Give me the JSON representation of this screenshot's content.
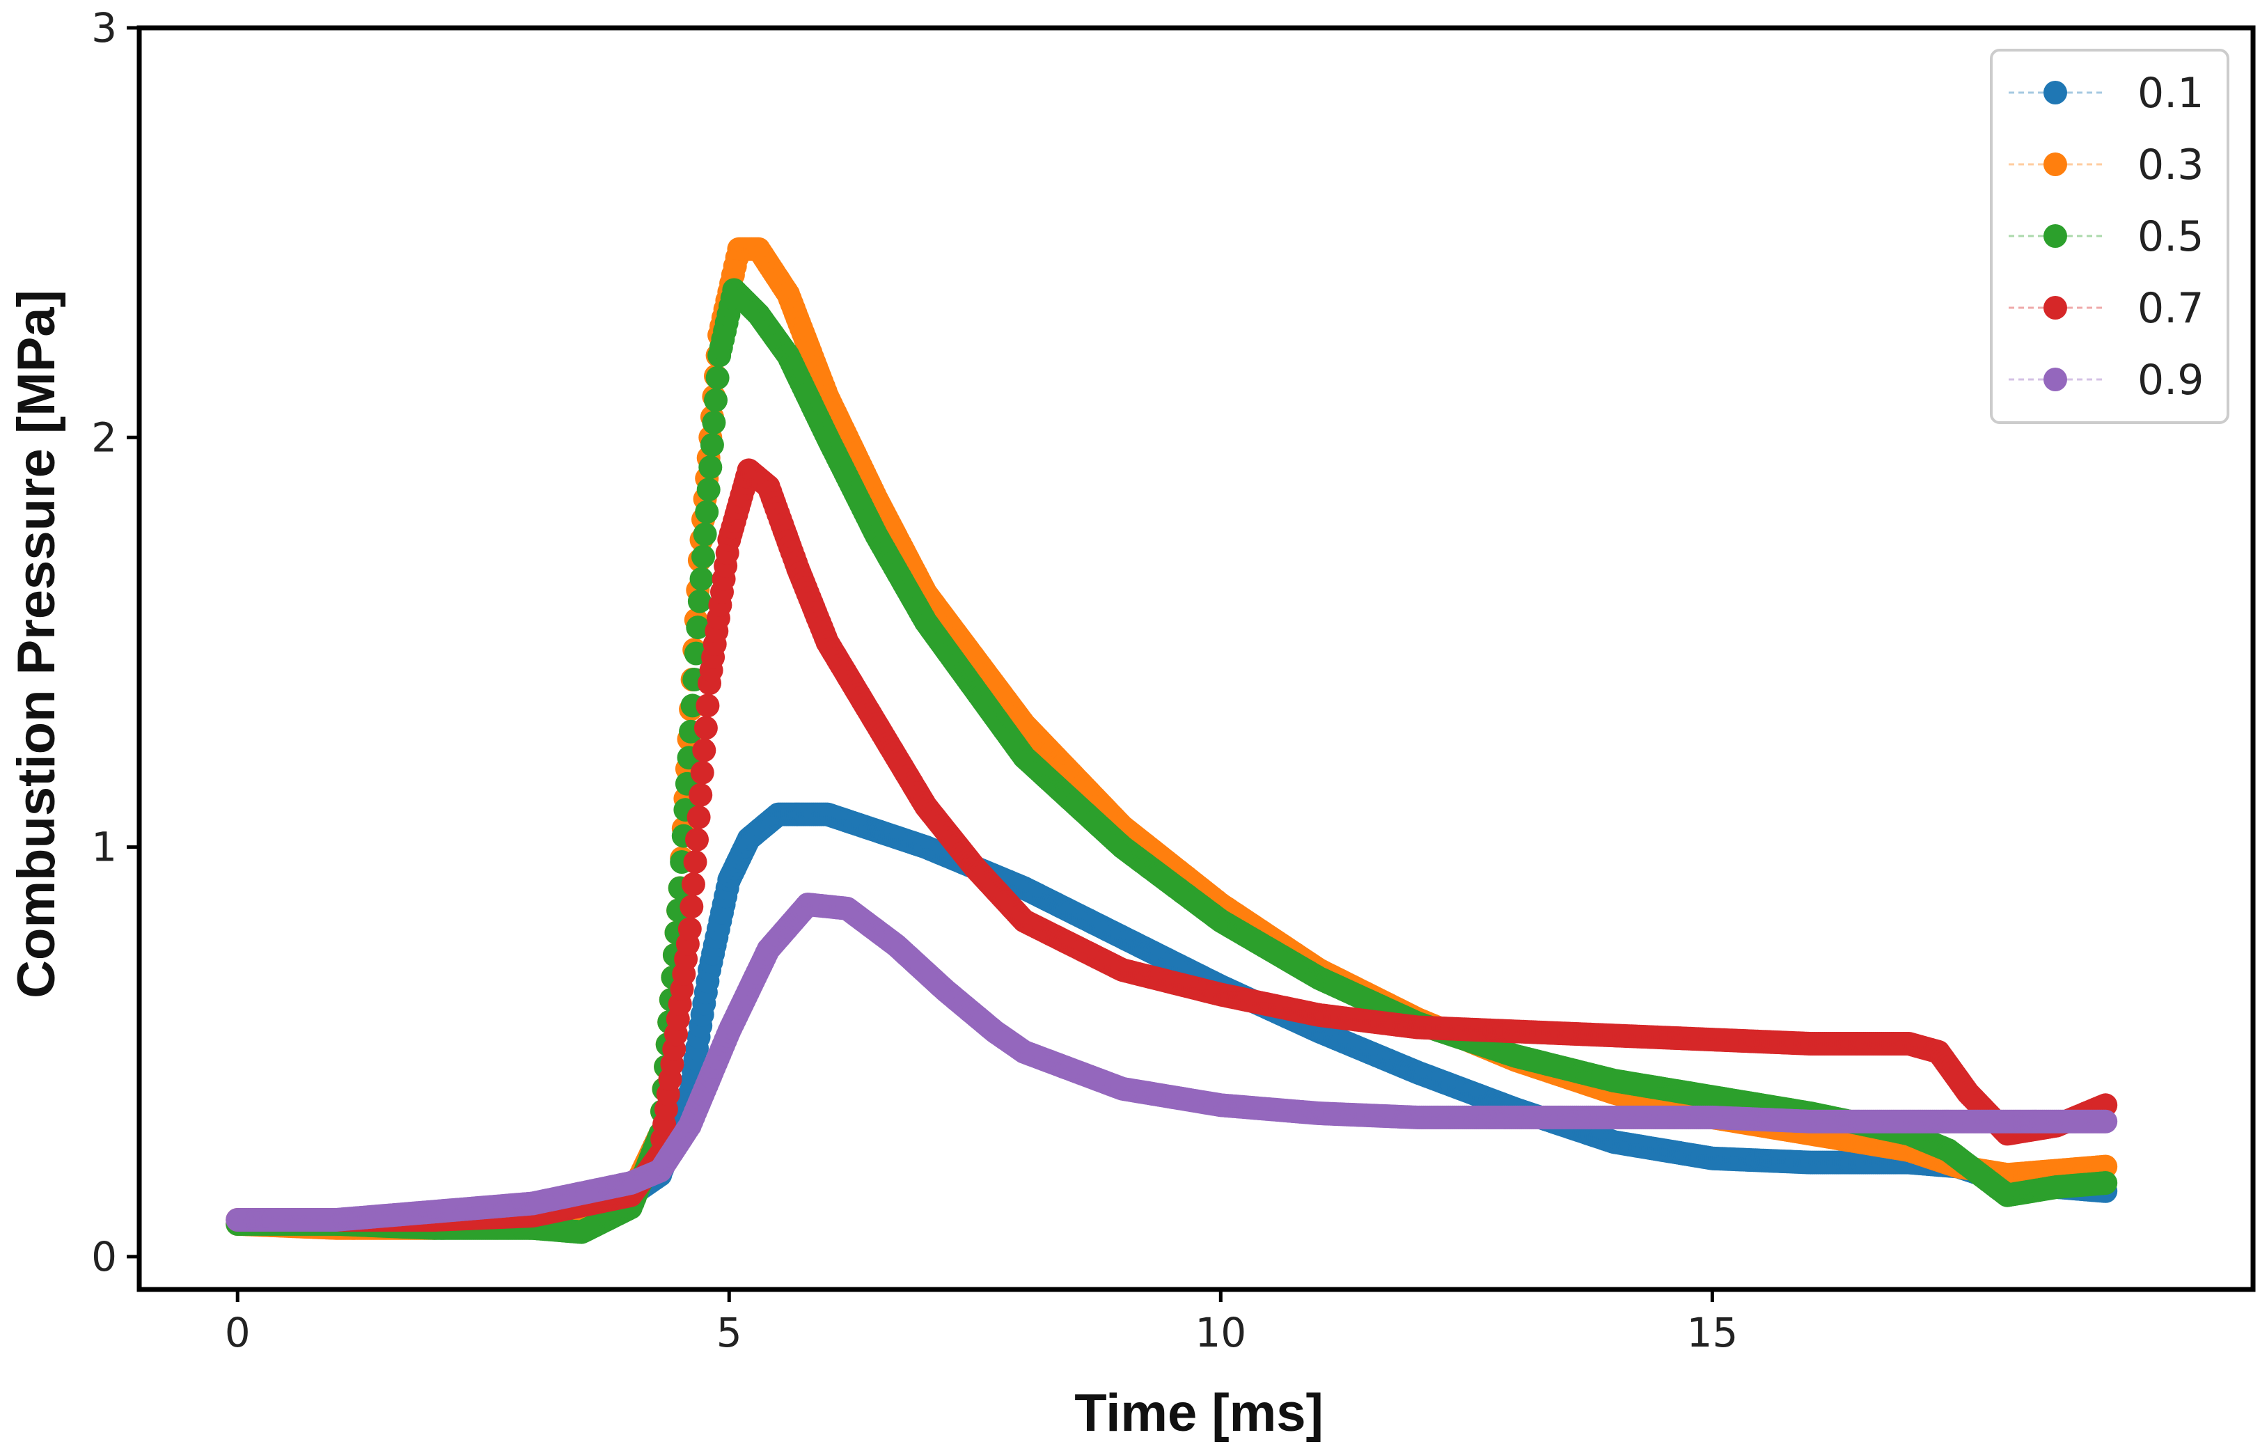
{
  "chart_data": {
    "type": "scatter",
    "title": "",
    "xlabel": "Time [ms]",
    "ylabel": "Combustion Pressure [MPa]",
    "xlim": [
      -1,
      20.5
    ],
    "ylim": [
      -0.08,
      3.0
    ],
    "xticks": [
      0,
      5,
      10,
      15
    ],
    "yticks": [
      0,
      1,
      2,
      3
    ],
    "legend_position": "top-right",
    "series": [
      {
        "name": "0.1",
        "color": "#1f77b4",
        "points": [
          [
            0,
            0.08
          ],
          [
            1,
            0.08
          ],
          [
            2,
            0.09
          ],
          [
            3,
            0.1
          ],
          [
            4,
            0.15
          ],
          [
            4.3,
            0.2
          ],
          [
            4.6,
            0.4
          ],
          [
            4.8,
            0.7
          ],
          [
            5.0,
            0.92
          ],
          [
            5.2,
            1.02
          ],
          [
            5.5,
            1.08
          ],
          [
            6,
            1.08
          ],
          [
            7,
            1.0
          ],
          [
            8,
            0.9
          ],
          [
            9,
            0.78
          ],
          [
            10,
            0.66
          ],
          [
            11,
            0.55
          ],
          [
            12,
            0.45
          ],
          [
            13,
            0.36
          ],
          [
            14,
            0.28
          ],
          [
            15,
            0.24
          ],
          [
            16,
            0.23
          ],
          [
            17,
            0.23
          ],
          [
            17.5,
            0.22
          ],
          [
            18,
            0.18
          ],
          [
            19,
            0.16
          ]
        ]
      },
      {
        "name": "0.3",
        "color": "#ff7f0e",
        "points": [
          [
            0,
            0.08
          ],
          [
            1,
            0.07
          ],
          [
            2,
            0.07
          ],
          [
            3,
            0.08
          ],
          [
            3.6,
            0.1
          ],
          [
            4,
            0.15
          ],
          [
            4.3,
            0.3
          ],
          [
            4.5,
            0.9
          ],
          [
            4.7,
            1.7
          ],
          [
            4.9,
            2.25
          ],
          [
            5.1,
            2.46
          ],
          [
            5.3,
            2.46
          ],
          [
            5.6,
            2.35
          ],
          [
            6,
            2.1
          ],
          [
            6.5,
            1.85
          ],
          [
            7,
            1.62
          ],
          [
            8,
            1.3
          ],
          [
            9,
            1.05
          ],
          [
            10,
            0.86
          ],
          [
            11,
            0.7
          ],
          [
            12,
            0.58
          ],
          [
            13,
            0.48
          ],
          [
            14,
            0.4
          ],
          [
            15,
            0.34
          ],
          [
            16,
            0.3
          ],
          [
            17,
            0.26
          ],
          [
            17.5,
            0.22
          ],
          [
            18,
            0.2
          ],
          [
            19,
            0.22
          ]
        ]
      },
      {
        "name": "0.5",
        "color": "#2ca02c",
        "points": [
          [
            0,
            0.08
          ],
          [
            1,
            0.08
          ],
          [
            2,
            0.07
          ],
          [
            3,
            0.07
          ],
          [
            3.5,
            0.06
          ],
          [
            4,
            0.12
          ],
          [
            4.3,
            0.3
          ],
          [
            4.5,
            0.9
          ],
          [
            4.7,
            1.6
          ],
          [
            4.9,
            2.2
          ],
          [
            5.05,
            2.36
          ],
          [
            5.3,
            2.3
          ],
          [
            5.6,
            2.2
          ],
          [
            6,
            2.0
          ],
          [
            6.5,
            1.76
          ],
          [
            7,
            1.55
          ],
          [
            8,
            1.22
          ],
          [
            9,
            1.0
          ],
          [
            10,
            0.82
          ],
          [
            11,
            0.68
          ],
          [
            12,
            0.57
          ],
          [
            13,
            0.49
          ],
          [
            14,
            0.43
          ],
          [
            15,
            0.39
          ],
          [
            16,
            0.35
          ],
          [
            17,
            0.3
          ],
          [
            17.4,
            0.26
          ],
          [
            18,
            0.15
          ],
          [
            18.5,
            0.17
          ],
          [
            19,
            0.18
          ]
        ]
      },
      {
        "name": "0.7",
        "color": "#d62728",
        "points": [
          [
            0,
            0.09
          ],
          [
            1,
            0.09
          ],
          [
            2,
            0.09
          ],
          [
            3,
            0.1
          ],
          [
            4,
            0.15
          ],
          [
            4.3,
            0.25
          ],
          [
            4.6,
            0.8
          ],
          [
            4.8,
            1.4
          ],
          [
            5.0,
            1.75
          ],
          [
            5.2,
            1.92
          ],
          [
            5.4,
            1.88
          ],
          [
            5.7,
            1.68
          ],
          [
            6,
            1.5
          ],
          [
            6.5,
            1.3
          ],
          [
            7,
            1.1
          ],
          [
            7.5,
            0.95
          ],
          [
            8,
            0.82
          ],
          [
            8.5,
            0.76
          ],
          [
            9,
            0.7
          ],
          [
            10,
            0.64
          ],
          [
            11,
            0.59
          ],
          [
            12,
            0.56
          ],
          [
            13,
            0.55
          ],
          [
            14,
            0.54
          ],
          [
            15,
            0.53
          ],
          [
            16,
            0.52
          ],
          [
            17,
            0.52
          ],
          [
            17.3,
            0.5
          ],
          [
            17.6,
            0.4
          ],
          [
            18,
            0.3
          ],
          [
            18.5,
            0.32
          ],
          [
            19,
            0.37
          ]
        ]
      },
      {
        "name": "0.9",
        "color": "#9467bd",
        "points": [
          [
            0,
            0.09
          ],
          [
            1,
            0.09
          ],
          [
            2,
            0.11
          ],
          [
            3,
            0.13
          ],
          [
            4,
            0.18
          ],
          [
            4.3,
            0.21
          ],
          [
            4.6,
            0.32
          ],
          [
            5.0,
            0.55
          ],
          [
            5.4,
            0.75
          ],
          [
            5.8,
            0.86
          ],
          [
            6.2,
            0.85
          ],
          [
            6.7,
            0.76
          ],
          [
            7.2,
            0.65
          ],
          [
            7.7,
            0.55
          ],
          [
            8,
            0.5
          ],
          [
            9,
            0.41
          ],
          [
            10,
            0.37
          ],
          [
            11,
            0.35
          ],
          [
            12,
            0.34
          ],
          [
            13,
            0.34
          ],
          [
            14,
            0.34
          ],
          [
            15,
            0.34
          ],
          [
            16,
            0.33
          ],
          [
            17,
            0.33
          ],
          [
            18,
            0.33
          ],
          [
            19,
            0.33
          ]
        ]
      }
    ]
  }
}
